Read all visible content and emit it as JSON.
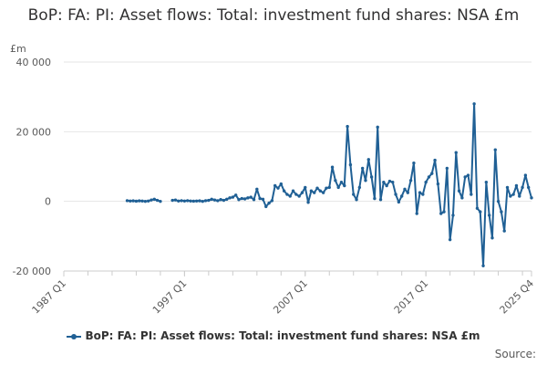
{
  "title": "BoP: FA: PI: Asset flows: Total: investment fund shares: NSA £m",
  "unit": "£m",
  "source_label": "Source:",
  "legend_label": "BoP: FA: PI: Asset flows: Total: investment fund shares: NSA £m",
  "colors": {
    "series": "#206095",
    "grid": "#e6e6e6",
    "axis": "#cccccc",
    "text": "#595959"
  },
  "chart_data": {
    "type": "line",
    "title": "BoP: FA: PI: Asset flows: Total: investment fund shares: NSA £m",
    "ylabel": "£m",
    "xlabel": "",
    "ylim": [
      -20000,
      40000
    ],
    "yticks": [
      40000,
      20000,
      0,
      -20000
    ],
    "ytick_labels": [
      "40 000",
      "20 000",
      "0",
      "-20 000"
    ],
    "x_range": [
      "1987 Q1",
      "2025 Q4"
    ],
    "xticks": [
      "1987 Q1",
      "1997 Q1",
      "2007 Q1",
      "2017 Q1",
      "2025 Q4"
    ],
    "grid": true,
    "legend_position": "bottom",
    "series": [
      {
        "name": "BoP: FA: PI: Asset flows: Total: investment fund shares: NSA £m",
        "segments": [
          {
            "start": "1992 Q2",
            "values": [
              200,
              100,
              150,
              50,
              150,
              100,
              0,
              100,
              400,
              600,
              300,
              0
            ]
          },
          {
            "start": "1996 Q1",
            "values": [
              300,
              400,
              100,
              200,
              100,
              200,
              100,
              50,
              100,
              150,
              0,
              200,
              300,
              600,
              400,
              200,
              500,
              300,
              600,
              1000,
              1200,
              1800,
              500,
              800,
              700,
              1000,
              1200,
              500,
              3500,
              800,
              600,
              -1500,
              -500,
              200,
              4500,
              3800,
              5000,
              3000,
              2000,
              1500,
              3000,
              2000,
              1500,
              2500,
              4000,
              -300,
              3000,
              2500,
              3800,
              3000,
              2500,
              3800,
              4000,
              9800,
              6000,
              4000,
              5500,
              4500,
              21500,
              10500,
              2000,
              500,
              4000,
              9500,
              6000,
              12000,
              7000,
              800,
              21300,
              500,
              5500,
              4500,
              5800,
              5500,
              2000,
              -200,
              1500,
              3500,
              2500,
              6000,
              11000,
              -3500,
              2500,
              2000,
              5500,
              7000,
              8000,
              11800,
              5000,
              -3500,
              -3000,
              9500,
              -11000,
              -4000,
              14000,
              3000,
              1000,
              7000,
              7500,
              2000,
              28000,
              -2000,
              -3000,
              -18500,
              5500,
              -4000,
              -10500,
              14800,
              0,
              -3000,
              -8500,
              4000,
              1500,
              2000,
              4500,
              1500,
              4000,
              7500,
              4000,
              1000
            ]
          }
        ]
      }
    ]
  }
}
